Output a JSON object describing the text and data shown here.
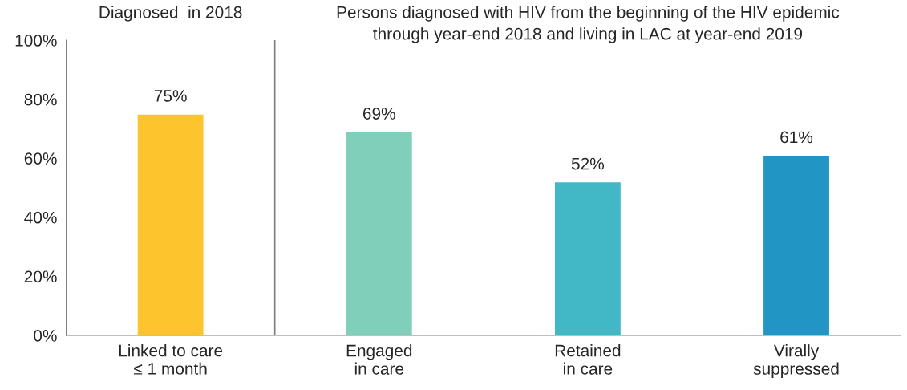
{
  "chart_data": {
    "type": "bar",
    "categories": [
      "Linked to care\n≤ 1 month",
      "Engaged\nin care",
      "Retained\nin care",
      "Virally\nsuppressed"
    ],
    "values": [
      75,
      69,
      52,
      61
    ],
    "colors": [
      "#fdc42d",
      "#7fcfbb",
      "#42b7c5",
      "#2196c4"
    ],
    "ylim": [
      0,
      100
    ],
    "yticks": [
      {
        "value": 0,
        "label": "0%"
      },
      {
        "value": 20,
        "label": "20%"
      },
      {
        "value": 40,
        "label": "40%"
      },
      {
        "value": 60,
        "label": "60%"
      },
      {
        "value": 80,
        "label": "80%"
      },
      {
        "value": 100,
        "label": "100%"
      }
    ],
    "value_labels": [
      "75%",
      "69%",
      "52%",
      "61%"
    ],
    "annotations": [
      "Diagnosed  in 2018",
      "Persons diagnosed with HIV from the beginning of the HIV epidemic\nthrough year-end 2018 and living in LAC at year-end 2019"
    ],
    "grid": false,
    "legend": false
  }
}
